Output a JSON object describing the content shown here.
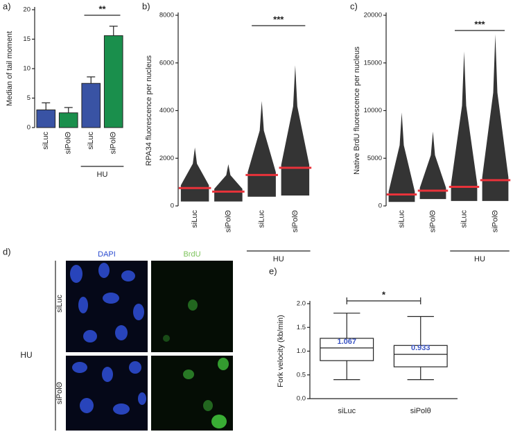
{
  "chart_data": [
    {
      "type": "bar",
      "label": "a)",
      "ylabel": "Median of tail moment",
      "categories": [
        "siLuc",
        "siPolΘ",
        "siLuc",
        "siPolΘ"
      ],
      "values": [
        3.0,
        2.5,
        7.5,
        15.6
      ],
      "errors": [
        1.2,
        0.9,
        1.1,
        1.6
      ],
      "colors": [
        "#3953a4",
        "#1a8f4c",
        "#3953a4",
        "#1a8f4c"
      ],
      "ylim": [
        0,
        20
      ],
      "yticks": [
        0,
        5,
        10,
        15,
        20
      ],
      "group_label": "HU",
      "group_span": [
        2,
        3
      ],
      "significance": "**",
      "significance_span": [
        2,
        3
      ]
    },
    {
      "type": "strip",
      "label": "b)",
      "ylabel": "RPA34 fluorescence per nucleus",
      "categories": [
        "siLuc",
        "siPolΘ",
        "siLuc",
        "siPolΘ"
      ],
      "values": [
        750,
        600,
        1300,
        1600
      ],
      "min": [
        100,
        100,
        300,
        350
      ],
      "max": [
        2450,
        1750,
        4400,
        5900
      ],
      "ylim": [
        0,
        8000
      ],
      "yticks": [
        0,
        2000,
        4000,
        6000,
        8000
      ],
      "group_label": "HU",
      "group_span": [
        2,
        3
      ],
      "significance": "***",
      "significance_span": [
        2,
        3
      ]
    },
    {
      "type": "strip",
      "label": "c)",
      "ylabel": "Native BrdU fluorescence per nucleus",
      "categories": [
        "siLuc",
        "siPolΘ",
        "siLuc",
        "siPolΘ"
      ],
      "values": [
        1200,
        1600,
        2000,
        2700
      ],
      "min": [
        200,
        500,
        300,
        300
      ],
      "max": [
        9800,
        7800,
        16200,
        18000
      ],
      "ylim": [
        0,
        20000
      ],
      "yticks": [
        0,
        5000,
        10000,
        15000,
        20000
      ],
      "group_label": "HU",
      "group_span": [
        2,
        3
      ],
      "significance": "***",
      "significance_span": [
        2,
        3
      ]
    },
    {
      "type": "box",
      "label": "e)",
      "ylabel": "Fork velocity (kb/min)",
      "categories": [
        "siLuc",
        "siPolθ"
      ],
      "boxes": [
        {
          "min": 0.4,
          "q1": 0.8,
          "median": 1.067,
          "q3": 1.27,
          "max": 1.8
        },
        {
          "min": 0.4,
          "q1": 0.67,
          "median": 0.933,
          "q3": 1.12,
          "max": 1.73
        }
      ],
      "ylim": [
        0,
        2.0
      ],
      "yticks": [
        {
          "value": 0,
          "label": "0.0"
        },
        0.5,
        {
          "value": 1,
          "label": "1.0"
        },
        1.5,
        {
          "value": 2,
          "label": "2.0"
        }
      ],
      "significance": "*",
      "significance_span": [
        0,
        1
      ]
    }
  ],
  "panel_d": {
    "label": "d)",
    "columns": [
      "DAPI",
      "BrdU"
    ],
    "rows": [
      "siLuc",
      "siPolΘ"
    ],
    "group": "HU"
  }
}
